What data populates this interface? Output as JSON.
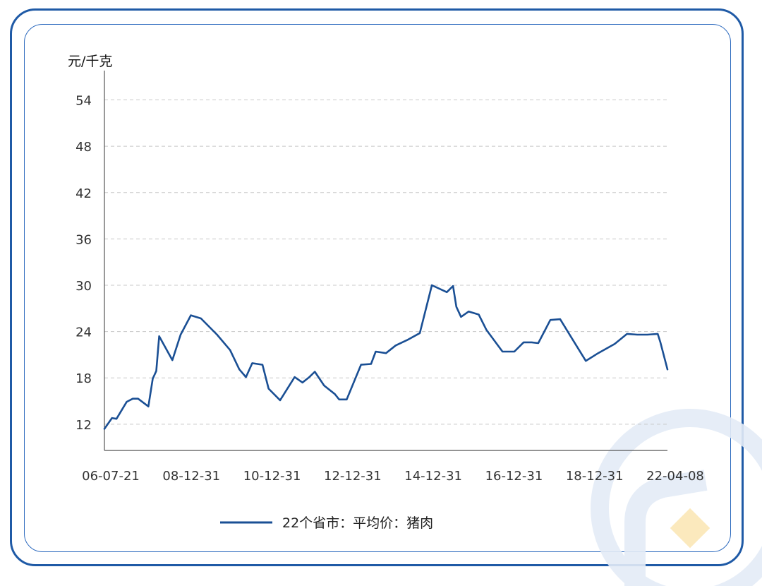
{
  "chart_data": {
    "type": "line",
    "title": "",
    "ylabel": "元/千克",
    "xlabel": "",
    "ylim": [
      8.6,
      57.8
    ],
    "yticks": [
      12,
      18,
      24,
      30,
      36,
      42,
      48,
      54
    ],
    "x_tick_labels": [
      "06-07-21",
      "08-12-31",
      "10-12-31",
      "12-12-31",
      "14-12-31",
      "16-12-31",
      "18-12-31",
      "22-04-08"
    ],
    "x_range": [
      "2006-07-21",
      "2022-04-08"
    ],
    "grid": "horizontal dashed",
    "legend": "bottom-center",
    "series": [
      {
        "name": "22个省市：平均价：猪肉",
        "color": "#1a4f94",
        "points": [
          [
            "2006-07-21",
            11.4
          ],
          [
            "2006-10-06",
            12.8
          ],
          [
            "2006-11-21",
            12.7
          ],
          [
            "2007-03-05",
            14.9
          ],
          [
            "2007-05-06",
            15.3
          ],
          [
            "2007-06-29",
            15.3
          ],
          [
            "2007-10-12",
            14.3
          ],
          [
            "2007-11-26",
            17.9
          ],
          [
            "2008-01-01",
            18.9
          ],
          [
            "2008-01-30",
            23.4
          ],
          [
            "2008-06-13",
            20.3
          ],
          [
            "2008-09-05",
            23.6
          ],
          [
            "2008-12-18",
            26.1
          ],
          [
            "2009-03-31",
            25.7
          ],
          [
            "2009-09-11",
            23.6
          ],
          [
            "2010-01-22",
            21.6
          ],
          [
            "2010-04-26",
            19.1
          ],
          [
            "2010-07-03",
            18.1
          ],
          [
            "2010-09-05",
            19.9
          ],
          [
            "2010-12-18",
            19.7
          ],
          [
            "2011-02-19",
            16.6
          ],
          [
            "2011-06-16",
            15.1
          ],
          [
            "2011-11-11",
            18.1
          ],
          [
            "2012-01-30",
            17.4
          ],
          [
            "2012-04-09",
            18.1
          ],
          [
            "2012-06-04",
            18.8
          ],
          [
            "2012-09-07",
            17.0
          ],
          [
            "2012-12-25",
            15.9
          ],
          [
            "2013-02-07",
            15.2
          ],
          [
            "2013-04-25",
            15.2
          ],
          [
            "2013-09-18",
            19.7
          ],
          [
            "2013-12-29",
            19.8
          ],
          [
            "2014-02-15",
            21.4
          ],
          [
            "2014-05-31",
            21.2
          ],
          [
            "2014-09-06",
            22.2
          ],
          [
            "2015-01-02",
            22.9
          ],
          [
            "2015-05-10",
            23.8
          ],
          [
            "2015-09-10",
            30.0
          ],
          [
            "2016-02-10",
            29.1
          ],
          [
            "2016-04-13",
            29.9
          ],
          [
            "2016-05-17",
            27.2
          ],
          [
            "2016-07-03",
            25.9
          ],
          [
            "2016-09-20",
            26.6
          ],
          [
            "2016-12-31",
            26.2
          ],
          [
            "2017-03-20",
            24.2
          ],
          [
            "2017-08-30",
            21.4
          ],
          [
            "2017-12-29",
            21.4
          ],
          [
            "2018-04-02",
            22.6
          ],
          [
            "2018-06-24",
            22.6
          ],
          [
            "2018-08-30",
            22.5
          ],
          [
            "2018-12-31",
            25.5
          ],
          [
            "2019-04-10",
            25.6
          ],
          [
            "2019-08-09",
            23.1
          ],
          [
            "2019-12-28",
            20.2
          ],
          [
            "2020-05-02",
            21.2
          ],
          [
            "2020-10-17",
            22.4
          ],
          [
            "2021-02-20",
            23.7
          ],
          [
            "2021-06-04",
            23.6
          ],
          [
            "2021-09-15",
            23.6
          ],
          [
            "2021-12-30",
            23.7
          ],
          [
            "2022-01-26",
            22.6
          ],
          [
            "2022-04-08",
            19.1
          ]
        ]
      }
    ]
  },
  "axis": {
    "unit_label": "元/千克",
    "y_tick_labels": [
      "12",
      "18",
      "24",
      "30",
      "36",
      "42",
      "48",
      "54"
    ],
    "x_tick_labels": [
      "06-07-21",
      "08-12-31",
      "10-12-31",
      "12-12-31",
      "14-12-31",
      "16-12-31",
      "18-12-31",
      "22-04-08"
    ]
  },
  "legend": {
    "label": "22个省市：平均价：猪肉",
    "color": "#1a4f94"
  },
  "colors": {
    "frame": "#1f5aa6",
    "line": "#1a4f94",
    "grid": "#c8c8c8",
    "watermark": "#e4ecf7",
    "watermark_accent": "#fbe7b6"
  },
  "watermark_icon": "stylized-logo-icon"
}
